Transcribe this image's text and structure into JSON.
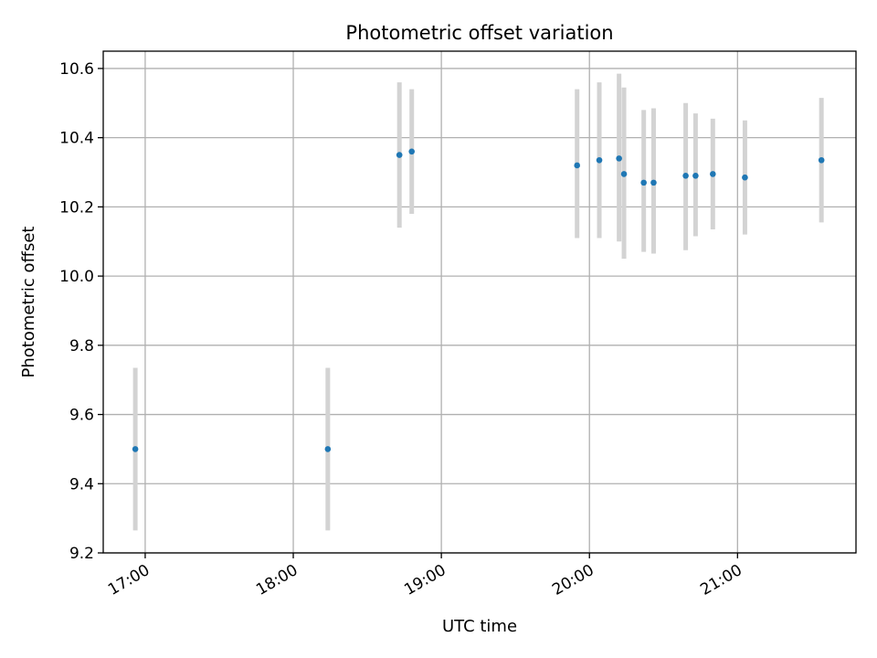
{
  "chart_data": {
    "type": "scatter",
    "title": "Photometric offset variation",
    "xlabel": "UTC time",
    "ylabel": "Photometric offset",
    "x_axis_kind": "time",
    "xlim": [
      "16:43",
      "21:48"
    ],
    "ylim": [
      9.2,
      10.65
    ],
    "x_ticks": [
      "17:00",
      "18:00",
      "19:00",
      "20:00",
      "21:00"
    ],
    "y_ticks": [
      "9.2",
      "9.4",
      "9.6",
      "9.8",
      "10.0",
      "10.2",
      "10.4",
      "10.6"
    ],
    "grid": true,
    "colors": {
      "point": "#1f77b4",
      "errorbar": "#d3d3d3",
      "grid": "#b0b0b0"
    },
    "points": [
      {
        "time": "16:56",
        "y": 9.5,
        "yerr_low": 9.265,
        "yerr_high": 9.735
      },
      {
        "time": "18:14",
        "y": 9.5,
        "yerr_low": 9.265,
        "yerr_high": 9.735
      },
      {
        "time": "18:43",
        "y": 10.35,
        "yerr_low": 10.14,
        "yerr_high": 10.56
      },
      {
        "time": "18:48",
        "y": 10.36,
        "yerr_low": 10.18,
        "yerr_high": 10.54
      },
      {
        "time": "19:55",
        "y": 10.32,
        "yerr_low": 10.11,
        "yerr_high": 10.54
      },
      {
        "time": "20:04",
        "y": 10.335,
        "yerr_low": 10.11,
        "yerr_high": 10.56
      },
      {
        "time": "20:12",
        "y": 10.34,
        "yerr_low": 10.1,
        "yerr_high": 10.585
      },
      {
        "time": "20:14",
        "y": 10.295,
        "yerr_low": 10.05,
        "yerr_high": 10.545
      },
      {
        "time": "20:22",
        "y": 10.27,
        "yerr_low": 10.07,
        "yerr_high": 10.48
      },
      {
        "time": "20:26",
        "y": 10.27,
        "yerr_low": 10.065,
        "yerr_high": 10.485
      },
      {
        "time": "20:39",
        "y": 10.29,
        "yerr_low": 10.075,
        "yerr_high": 10.5
      },
      {
        "time": "20:43",
        "y": 10.29,
        "yerr_low": 10.115,
        "yerr_high": 10.47
      },
      {
        "time": "20:50",
        "y": 10.295,
        "yerr_low": 10.135,
        "yerr_high": 10.455
      },
      {
        "time": "21:03",
        "y": 10.285,
        "yerr_low": 10.12,
        "yerr_high": 10.45
      },
      {
        "time": "21:34",
        "y": 10.335,
        "yerr_low": 10.155,
        "yerr_high": 10.515
      }
    ]
  }
}
